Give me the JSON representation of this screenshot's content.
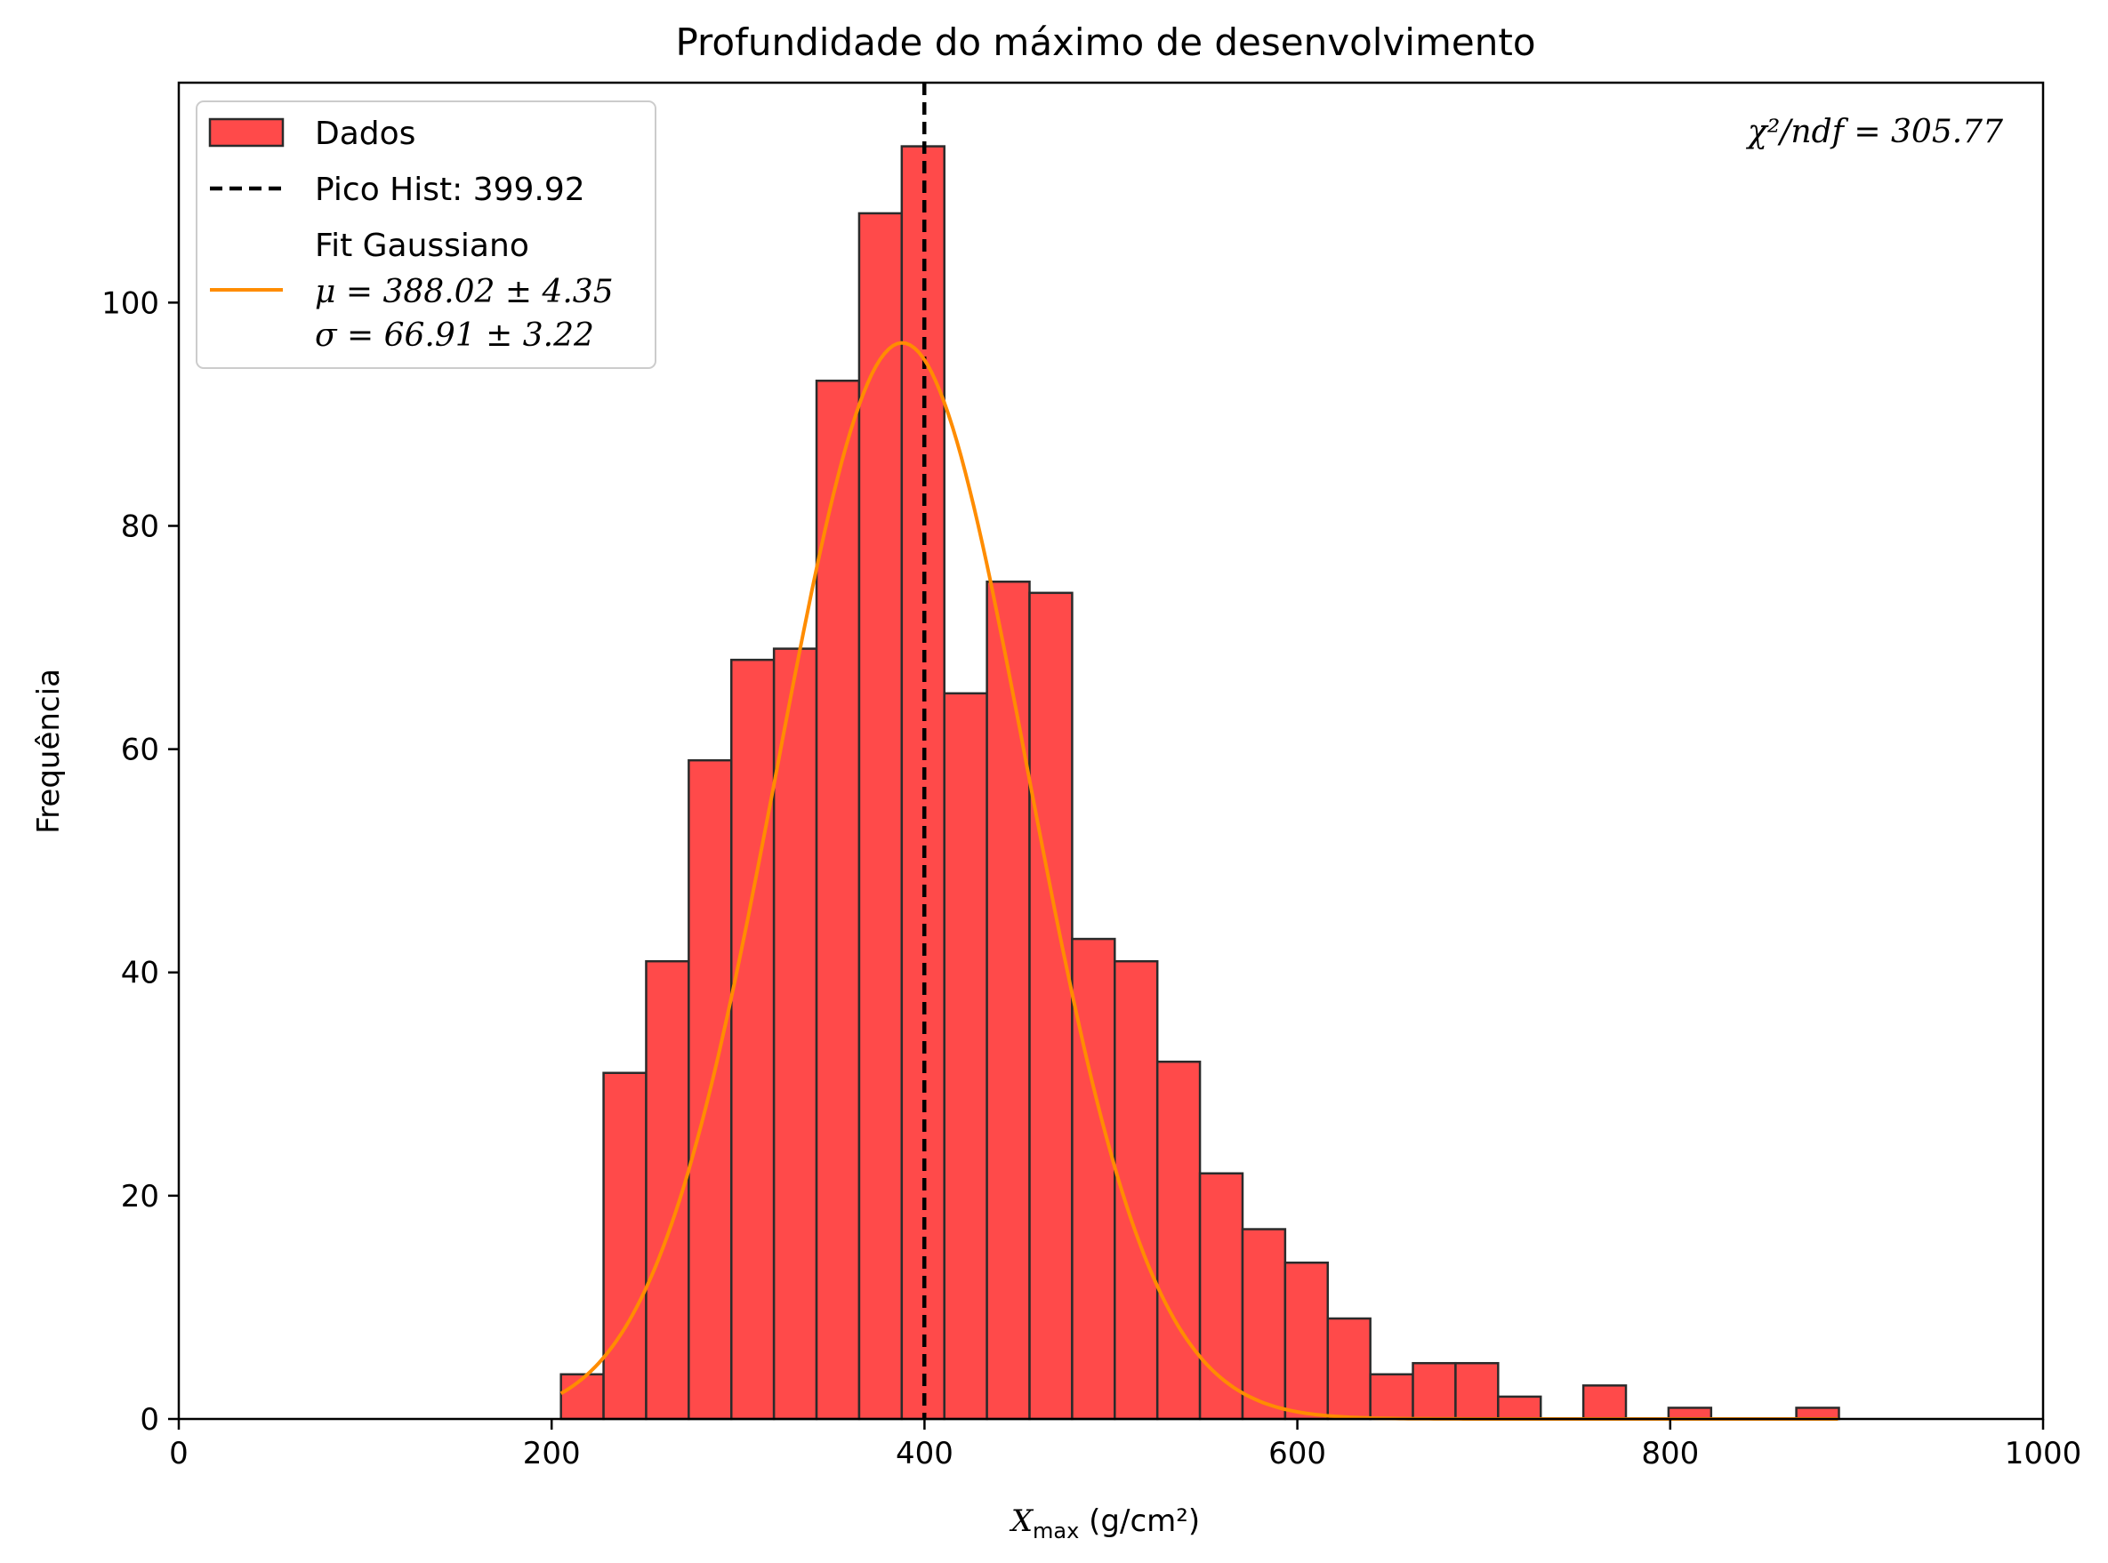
{
  "chart_data": {
    "type": "bar",
    "title": "Profundidade do máximo de desenvolvimento",
    "xlabel_main": "X",
    "xlabel_sub": "max",
    "xlabel_unit": " (g/cm²)",
    "ylabel": "Frequência",
    "xlim": [
      0,
      1000
    ],
    "ylim": [
      0,
      119.7
    ],
    "xticks": [
      0,
      200,
      400,
      600,
      800,
      1000
    ],
    "yticks": [
      0,
      20,
      40,
      60,
      80,
      100
    ],
    "bin_start": 205,
    "bin_width": 22.85,
    "values": [
      4,
      31,
      41,
      59,
      68,
      69,
      93,
      108,
      114,
      65,
      75,
      74,
      43,
      41,
      32,
      22,
      17,
      14,
      9,
      4,
      5,
      5,
      2,
      0,
      3,
      0,
      1,
      0,
      0,
      1
    ],
    "peak_line": {
      "x": 399.92,
      "label": "Pico Hist: 399.92"
    },
    "fit": {
      "label": "Fit Gaussiano",
      "mu_line": "μ = 388.02 ± 4.35",
      "sigma_line": "σ = 66.91 ± 3.22",
      "mu": 388.02,
      "sigma": 66.91,
      "amplitude": 96.4,
      "x_range": [
        205,
        890
      ]
    },
    "series_label": "Dados",
    "chi2_text": "χ²/ndf = 305.77",
    "colors": {
      "bar_fill": "#ff4a4a",
      "bar_edge": "#2b2b2b",
      "fit_line": "#ff8c00",
      "peak_line": "#000000"
    },
    "legend_position": "top-left",
    "grid": false
  }
}
